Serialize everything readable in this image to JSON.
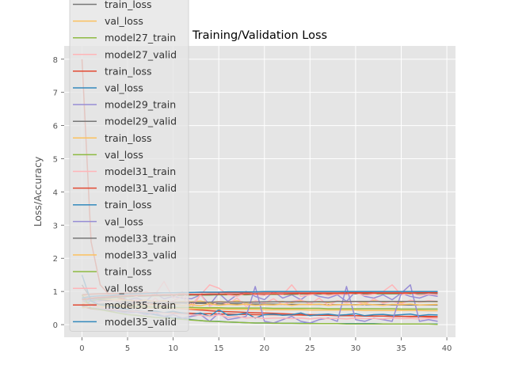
{
  "chart_data": {
    "type": "line",
    "title": "Training/Validation Loss",
    "xlabel": "",
    "ylabel": "Loss/Accuracy",
    "xlim": [
      -1.95,
      40.95
    ],
    "ylim": [
      -0.38,
      8.4
    ],
    "x_ticks": [
      0,
      5,
      10,
      15,
      20,
      25,
      30,
      35,
      40
    ],
    "y_ticks": [
      0,
      1,
      2,
      3,
      4,
      5,
      6,
      7,
      8
    ],
    "grid": true,
    "legend_position": "upper-left",
    "background": "#e5e5e5",
    "series": [
      {
        "name": "train_loss",
        "color": "#777777",
        "values": [
          1.2,
          0.78,
          0.75,
          0.72,
          0.7,
          0.69,
          0.68,
          0.67,
          0.66,
          0.66,
          0.65,
          0.65,
          0.64,
          0.64,
          0.64,
          0.63,
          0.63,
          0.63,
          0.62,
          0.62,
          0.62,
          0.62,
          0.61,
          0.61,
          0.61,
          0.61,
          0.61,
          0.6,
          0.6,
          0.6,
          0.6,
          0.6,
          0.6,
          0.6,
          0.59,
          0.59,
          0.59,
          0.59,
          0.59,
          0.59
        ]
      },
      {
        "name": "val_loss",
        "color": "#FBC15E",
        "values": [
          0.9,
          0.8,
          0.78,
          0.76,
          0.75,
          0.74,
          0.72,
          0.74,
          0.7,
          0.72,
          0.68,
          0.7,
          0.69,
          0.71,
          0.66,
          0.7,
          0.68,
          0.72,
          0.66,
          0.7,
          0.67,
          0.69,
          0.7,
          0.66,
          0.72,
          0.68,
          0.7,
          0.66,
          0.71,
          0.68,
          0.7,
          0.67,
          0.72,
          0.68,
          0.7,
          0.66,
          0.71,
          0.68,
          0.7,
          0.69
        ]
      },
      {
        "name": "model27_train",
        "color": "#8EBA42",
        "values": [
          0.6,
          0.72,
          0.78,
          0.8,
          0.82,
          0.84,
          0.85,
          0.86,
          0.87,
          0.87,
          0.88,
          0.88,
          0.89,
          0.89,
          0.89,
          0.9,
          0.9,
          0.9,
          0.9,
          0.91,
          0.91,
          0.91,
          0.91,
          0.91,
          0.92,
          0.92,
          0.92,
          0.92,
          0.92,
          0.92,
          0.93,
          0.93,
          0.93,
          0.93,
          0.93,
          0.93,
          0.93,
          0.93,
          0.94,
          0.94
        ]
      },
      {
        "name": "model27_valid",
        "color": "#FFB5B8",
        "values": [
          0.55,
          0.62,
          0.68,
          0.7,
          0.72,
          0.6,
          0.75,
          0.5,
          0.8,
          0.6,
          0.72,
          0.85,
          0.5,
          0.9,
          0.55,
          0.7,
          0.62,
          0.8,
          0.55,
          0.72,
          0.65,
          0.78,
          0.6,
          0.7,
          0.75,
          0.62,
          0.8,
          0.58,
          0.72,
          0.66,
          0.7,
          0.6,
          0.78,
          0.64,
          0.7,
          0.62,
          0.74,
          0.68,
          0.72,
          0.7
        ]
      },
      {
        "name": "train_loss",
        "color": "#E24A33",
        "values": [
          0.55,
          0.48,
          0.45,
          0.43,
          0.41,
          0.4,
          0.39,
          0.38,
          0.37,
          0.36,
          0.35,
          0.35,
          0.34,
          0.33,
          0.33,
          0.32,
          0.32,
          0.31,
          0.31,
          0.3,
          0.3,
          0.3,
          0.29,
          0.29,
          0.29,
          0.28,
          0.28,
          0.28,
          0.27,
          0.27,
          0.27,
          0.26,
          0.26,
          0.26,
          0.26,
          0.25,
          0.25,
          0.25,
          0.25,
          0.24
        ]
      },
      {
        "name": "val_loss",
        "color": "#348ABD",
        "values": [
          0.6,
          0.5,
          0.47,
          0.45,
          0.44,
          0.4,
          0.42,
          0.38,
          0.41,
          0.36,
          0.4,
          0.35,
          0.3,
          0.35,
          0.25,
          0.45,
          0.28,
          0.3,
          0.35,
          0.2,
          0.3,
          0.32,
          0.28,
          0.3,
          0.35,
          0.27,
          0.3,
          0.32,
          0.28,
          0.3,
          0.33,
          0.27,
          0.3,
          0.31,
          0.28,
          0.3,
          0.32,
          0.27,
          0.3,
          0.29
        ]
      },
      {
        "name": "model29_train",
        "color": "#988ED5",
        "values": [
          0.7,
          0.75,
          0.8,
          0.82,
          0.84,
          0.86,
          0.87,
          0.88,
          0.88,
          0.89,
          0.9,
          0.9,
          0.9,
          0.91,
          0.91,
          0.91,
          0.92,
          0.92,
          0.92,
          0.92,
          0.92,
          0.93,
          0.93,
          0.93,
          0.93,
          0.93,
          0.93,
          0.94,
          0.94,
          0.94,
          0.94,
          0.94,
          0.94,
          0.94,
          0.95,
          0.95,
          0.95,
          0.95,
          0.95,
          0.95
        ]
      },
      {
        "name": "model29_valid",
        "color": "#777777",
        "values": [
          0.75,
          0.78,
          0.8,
          0.82,
          0.84,
          0.85,
          0.86,
          0.87,
          0.88,
          0.88,
          0.89,
          0.89,
          0.9,
          0.9,
          0.9,
          0.91,
          0.91,
          0.91,
          0.91,
          0.92,
          0.92,
          0.92,
          0.92,
          0.92,
          0.93,
          0.93,
          0.93,
          0.93,
          0.93,
          0.93,
          0.93,
          0.93,
          0.94,
          0.94,
          0.94,
          0.94,
          0.94,
          0.94,
          0.94,
          0.94
        ]
      },
      {
        "name": "train_loss",
        "color": "#FBC15E",
        "values": [
          0.65,
          0.6,
          0.57,
          0.55,
          0.53,
          0.52,
          0.51,
          0.5,
          0.5,
          0.49,
          0.49,
          0.48,
          0.48,
          0.47,
          0.47,
          0.47,
          0.46,
          0.46,
          0.46,
          0.46,
          0.45,
          0.45,
          0.45,
          0.45,
          0.45,
          0.44,
          0.44,
          0.44,
          0.44,
          0.44,
          0.44,
          0.43,
          0.43,
          0.43,
          0.43,
          0.43,
          0.43,
          0.43,
          0.42,
          0.42
        ]
      },
      {
        "name": "val_loss",
        "color": "#8EBA42",
        "values": [
          0.7,
          0.62,
          0.6,
          0.58,
          0.57,
          0.56,
          0.55,
          0.54,
          0.53,
          0.53,
          0.52,
          0.52,
          0.52,
          0.51,
          0.51,
          0.51,
          0.5,
          0.5,
          0.5,
          0.5,
          0.5,
          0.49,
          0.49,
          0.49,
          0.49,
          0.49,
          0.49,
          0.48,
          0.48,
          0.48,
          0.48,
          0.48,
          0.48,
          0.48,
          0.48,
          0.47,
          0.47,
          0.47,
          0.47,
          0.47
        ]
      },
      {
        "name": "model31_train",
        "color": "#FFB5B8",
        "values": [
          0.85,
          0.8,
          0.85,
          0.9,
          0.88,
          0.92,
          0.85,
          1.0,
          0.9,
          1.3,
          0.8,
          1.0,
          0.6,
          0.9,
          1.2,
          1.1,
          0.9,
          0.85,
          0.95,
          0.9,
          0.88,
          0.95,
          0.9,
          1.2,
          0.85,
          0.9,
          0.95,
          0.88,
          0.92,
          0.9,
          0.95,
          0.88,
          0.92,
          1.0,
          1.2,
          0.9,
          0.95,
          0.88,
          0.92,
          0.9
        ]
      },
      {
        "name": "model31_valid",
        "color": "#E24A33",
        "values": [
          0.9,
          0.92,
          0.93,
          0.94,
          0.94,
          0.95,
          0.95,
          0.95,
          0.96,
          0.96,
          0.96,
          0.96,
          0.97,
          0.97,
          0.97,
          0.97,
          0.97,
          0.97,
          0.97,
          0.98,
          0.98,
          0.98,
          0.98,
          0.98,
          0.98,
          0.98,
          0.98,
          0.98,
          0.98,
          0.98,
          0.98,
          0.98,
          0.99,
          0.99,
          0.99,
          0.99,
          0.99,
          0.99,
          0.99,
          0.99
        ]
      },
      {
        "name": "train_loss",
        "color": "#348ABD",
        "values": [
          1.5,
          0.7,
          0.6,
          0.55,
          0.5,
          0.45,
          0.4,
          0.35,
          0.3,
          0.25,
          0.2,
          0.2,
          0.15,
          0.12,
          0.1,
          0.1,
          0.08,
          0.07,
          0.06,
          0.05,
          0.05,
          0.05,
          0.04,
          0.04,
          0.04,
          0.04,
          0.03,
          0.03,
          0.03,
          0.03,
          0.03,
          0.03,
          0.03,
          0.02,
          0.02,
          0.02,
          0.02,
          0.02,
          0.02,
          0.02
        ]
      },
      {
        "name": "val_loss",
        "color": "#988ED5",
        "values": [
          0.8,
          0.6,
          0.5,
          0.45,
          0.4,
          0.35,
          0.38,
          0.3,
          0.35,
          0.25,
          0.3,
          0.2,
          0.25,
          0.3,
          0.1,
          0.35,
          0.15,
          0.2,
          0.25,
          1.15,
          0.1,
          0.05,
          0.15,
          0.25,
          0.1,
          0.05,
          0.15,
          0.2,
          0.1,
          1.15,
          0.15,
          0.1,
          0.2,
          0.15,
          0.1,
          0.95,
          1.2,
          0.1,
          0.15,
          0.1
        ]
      },
      {
        "name": "model33_train",
        "color": "#777777",
        "values": [
          0.55,
          0.6,
          0.62,
          0.63,
          0.64,
          0.65,
          0.65,
          0.66,
          0.66,
          0.66,
          0.67,
          0.67,
          0.67,
          0.67,
          0.68,
          0.68,
          0.68,
          0.68,
          0.68,
          0.68,
          0.69,
          0.69,
          0.69,
          0.69,
          0.69,
          0.69,
          0.69,
          0.69,
          0.7,
          0.7,
          0.7,
          0.7,
          0.7,
          0.7,
          0.7,
          0.7,
          0.7,
          0.7,
          0.7,
          0.7
        ]
      },
      {
        "name": "model33_valid",
        "color": "#FBC15E",
        "values": [
          0.5,
          0.55,
          0.52,
          0.58,
          0.6,
          0.55,
          0.62,
          0.58,
          0.6,
          0.56,
          0.62,
          0.58,
          0.6,
          0.57,
          0.63,
          0.58,
          0.61,
          0.59,
          0.62,
          0.58,
          0.6,
          0.59,
          0.62,
          0.58,
          0.61,
          0.6,
          0.62,
          0.58,
          0.6,
          0.61,
          0.59,
          0.62,
          0.6,
          0.58,
          0.61,
          0.6,
          0.62,
          0.59,
          0.6,
          0.61
        ]
      },
      {
        "name": "train_loss",
        "color": "#8EBA42",
        "values": [
          0.9,
          0.5,
          0.45,
          0.4,
          0.35,
          0.3,
          0.28,
          0.25,
          0.22,
          0.2,
          0.18,
          0.16,
          0.14,
          0.12,
          0.1,
          0.09,
          0.08,
          0.07,
          0.06,
          0.05,
          0.05,
          0.04,
          0.04,
          0.04,
          0.03,
          0.03,
          0.03,
          0.03,
          0.03,
          0.02,
          0.02,
          0.02,
          0.02,
          0.02,
          0.02,
          0.02,
          0.02,
          0.02,
          0.02,
          0.01
        ]
      },
      {
        "name": "val_loss",
        "color": "#FFB5B8",
        "values": [
          0.7,
          0.55,
          0.5,
          0.48,
          0.45,
          0.42,
          0.4,
          0.38,
          0.36,
          0.35,
          0.33,
          0.32,
          0.3,
          0.28,
          0.25,
          0.3,
          0.22,
          0.25,
          0.2,
          0.22,
          0.18,
          0.2,
          0.2,
          0.18,
          0.2,
          0.17,
          0.2,
          0.18,
          0.19,
          0.17,
          0.2,
          0.18,
          0.19,
          0.17,
          0.2,
          0.18,
          0.19,
          0.17,
          0.19,
          0.18
        ]
      },
      {
        "name": "model35_train",
        "color": "#E24A33",
        "values": [
          0.75,
          0.8,
          0.82,
          0.84,
          0.86,
          0.87,
          0.88,
          0.88,
          0.89,
          0.9,
          0.9,
          0.91,
          0.91,
          0.91,
          0.92,
          0.92,
          0.92,
          0.92,
          0.93,
          0.93,
          0.93,
          0.93,
          0.93,
          0.94,
          0.94,
          0.94,
          0.94,
          0.94,
          0.94,
          0.95,
          0.95,
          0.95,
          0.95,
          0.95,
          0.95,
          0.95,
          0.95,
          0.96,
          0.96,
          0.96
        ]
      },
      {
        "name": "model35_valid",
        "color": "#348ABD",
        "values": [
          0.8,
          0.85,
          0.87,
          0.88,
          0.9,
          0.92,
          0.93,
          0.94,
          0.95,
          0.96,
          0.96,
          0.97,
          0.97,
          0.98,
          0.98,
          0.98,
          0.99,
          0.99,
          0.99,
          0.99,
          1.0,
          1.0,
          1.0,
          1.0,
          1.0,
          1.0,
          1.0,
          1.0,
          1.0,
          1.0,
          1.0,
          1.0,
          1.0,
          1.0,
          1.0,
          1.0,
          1.0,
          1.0,
          1.0,
          1.0
        ]
      }
    ],
    "extra_lines": [
      {
        "color": "#E24A33",
        "values": [
          8.0,
          2.5,
          1.2,
          0.9,
          0.8,
          0.75,
          0.7,
          0.65,
          0.6,
          0.55,
          0.5,
          0.48,
          0.46,
          0.44,
          0.42,
          0.4,
          0.39,
          0.38,
          0.37,
          0.36,
          0.35,
          0.34,
          0.33,
          0.32,
          0.31,
          0.3,
          0.3,
          0.29,
          0.28,
          0.28,
          0.27,
          0.27,
          0.26,
          0.26,
          0.25,
          0.25,
          0.24,
          0.24,
          0.23,
          0.23
        ]
      },
      {
        "color": "#988ED5",
        "values": [
          0.85,
          0.7,
          0.72,
          0.78,
          0.9,
          0.75,
          0.8,
          0.7,
          0.95,
          0.78,
          0.85,
          0.8,
          0.78,
          0.9,
          0.6,
          0.95,
          0.7,
          0.9,
          1.0,
          0.85,
          0.75,
          1.0,
          0.8,
          0.9,
          0.75,
          0.95,
          0.85,
          0.8,
          0.9,
          0.7,
          1.0,
          0.85,
          0.8,
          0.9,
          0.75,
          0.95,
          0.85,
          0.8,
          0.9,
          0.85
        ]
      }
    ]
  }
}
